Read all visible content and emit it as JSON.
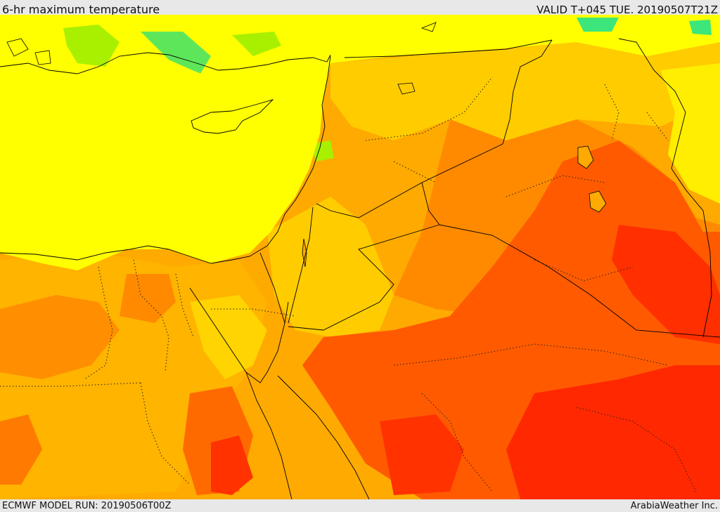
{
  "header": {
    "title": "6-hr maximum temperature",
    "valid": "VALID T+045 TUE. 20190507T21Z"
  },
  "footer": {
    "model_run": "ECMWF MODEL RUN: 20190506T00Z",
    "credit": "ArabiaWeather Inc."
  },
  "map": {
    "field": "temperature",
    "palette": [
      "#3ce67a",
      "#a8f000",
      "#ffff00",
      "#ffd200",
      "#ffaa00",
      "#ff8a00",
      "#ff5a00",
      "#ff2800"
    ]
  }
}
